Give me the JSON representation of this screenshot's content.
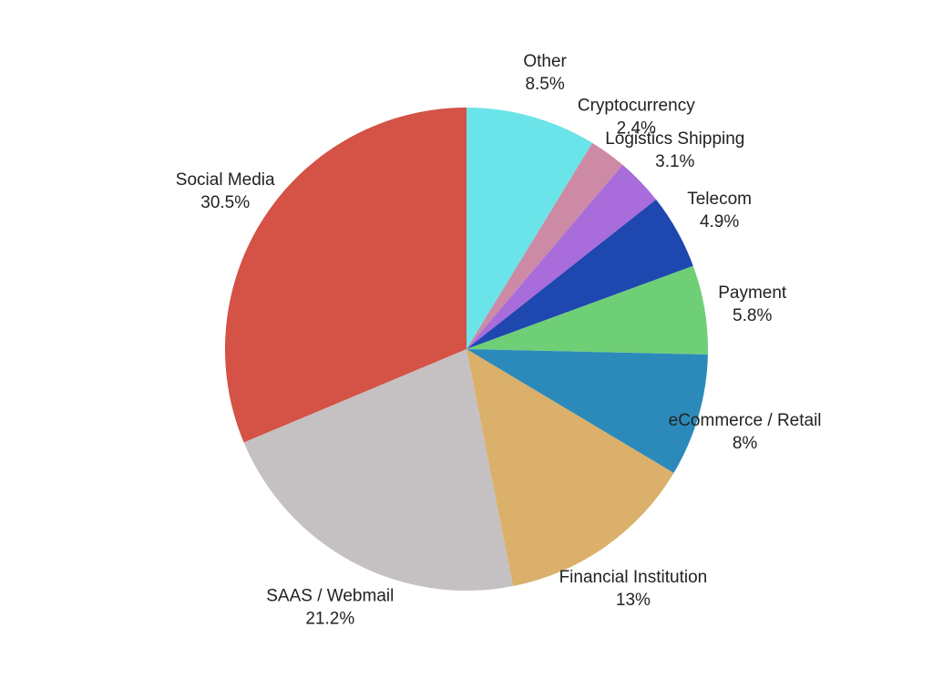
{
  "chart_data": {
    "type": "pie",
    "title": "",
    "start_angle_deg": 0,
    "direction": "clockwise",
    "slices": [
      {
        "label": "Other",
        "value": 8.5,
        "value_label": "8.5%",
        "color": "#6AE4E8"
      },
      {
        "label": "Cryptocurrency",
        "value": 2.4,
        "value_label": "2.4%",
        "color": "#CC8AA5"
      },
      {
        "label": "Logistics Shipping",
        "value": 3.1,
        "value_label": "3.1%",
        "color": "#A86CDB"
      },
      {
        "label": "Telecom",
        "value": 4.9,
        "value_label": "4.9%",
        "color": "#1E48B0"
      },
      {
        "label": "Payment",
        "value": 5.8,
        "value_label": "5.8%",
        "color": "#6FCF77"
      },
      {
        "label": "eCommerce / Retail",
        "value": 8,
        "value_label": "8%",
        "color": "#2C8ABB"
      },
      {
        "label": "Financial Institution",
        "value": 13,
        "value_label": "13%",
        "color": "#DAB06A"
      },
      {
        "label": "SAAS / Webmail",
        "value": 21.2,
        "value_label": "21.2%",
        "color": "#C5C0C2"
      },
      {
        "label": "Social Media",
        "value": 30.5,
        "value_label": "30.5%",
        "color": "#D45246"
      }
    ],
    "label_colors_note": "",
    "legend": "none"
  }
}
